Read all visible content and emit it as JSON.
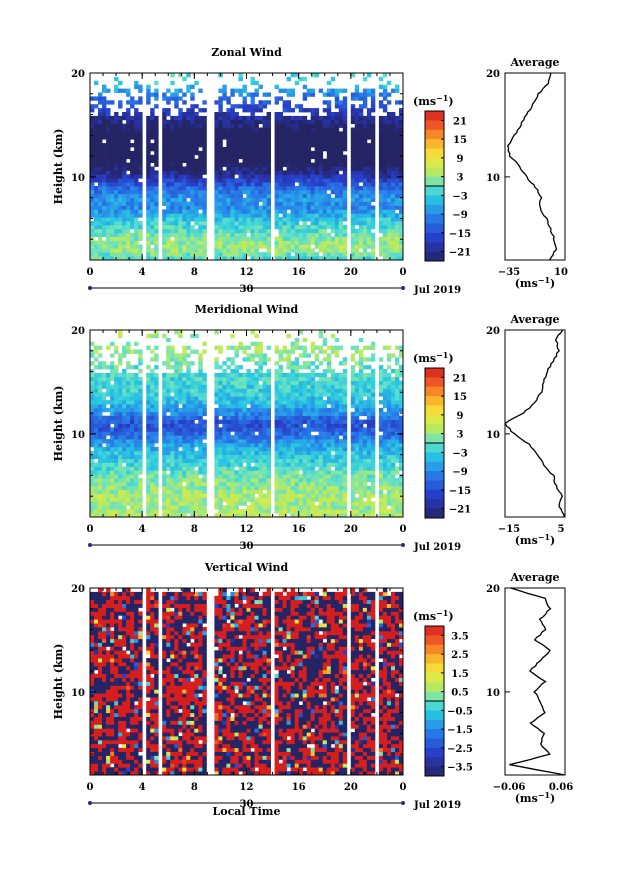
{
  "chart_data": [
    {
      "type": "heatmap",
      "title": "Zonal Wind",
      "ylabel": "Height (km)",
      "ylim": [
        2,
        20
      ],
      "y_ticks": [
        20,
        10
      ],
      "xlim": [
        0,
        24
      ],
      "x_ticks": [
        "0",
        "4",
        "8",
        "12",
        "16",
        "20",
        "0"
      ],
      "date_ticks": [
        "30"
      ],
      "date_label": "Jul 2019",
      "colorbar": {
        "unit": "(ms",
        "unit_exp": "−1",
        "unit_end": ")",
        "ticks": [
          21,
          15,
          9,
          3,
          -3,
          -9,
          -15,
          -21
        ],
        "range": [
          -24,
          24
        ]
      },
      "gaps_hours": [
        [
          4.0,
          4.3
        ],
        [
          5.2,
          5.6
        ],
        [
          9.0,
          9.4
        ],
        [
          13.7,
          14.0
        ],
        [
          19.6,
          19.9
        ],
        [
          21.8,
          22.1
        ]
      ],
      "profile": [
        [
          -2,
          2
        ],
        [
          3,
          3
        ],
        [
          2,
          4
        ],
        [
          -1,
          5
        ],
        [
          -4,
          6
        ],
        [
          -9,
          7
        ],
        [
          -8,
          8
        ],
        [
          -12,
          9
        ],
        [
          -19,
          10
        ],
        [
          -24,
          11
        ],
        [
          -31,
          12
        ],
        [
          -33,
          13
        ],
        [
          -28,
          14
        ],
        [
          -23,
          15
        ],
        [
          -19,
          16
        ],
        [
          -14,
          17
        ],
        [
          -10,
          18
        ],
        [
          -3,
          19
        ],
        [
          -1,
          20
        ]
      ],
      "average": {
        "title": "Average",
        "xlabel": "(ms",
        "xlabel_exp": "−1",
        "xlabel_end": ")",
        "xlim": [
          -35,
          10
        ],
        "x_ticks": [
          -35,
          10
        ],
        "y_ticks": [
          20,
          10
        ]
      }
    },
    {
      "type": "heatmap",
      "title": "Meridional Wind",
      "ylabel": "Height (km)",
      "ylim": [
        2,
        20
      ],
      "y_ticks": [
        20,
        10
      ],
      "xlim": [
        0,
        24
      ],
      "x_ticks": [
        "0",
        "4",
        "8",
        "12",
        "16",
        "20",
        "0"
      ],
      "date_ticks": [
        "30"
      ],
      "date_label": "Jul 2019",
      "colorbar": {
        "unit": "(ms",
        "unit_exp": "−1",
        "unit_end": ")",
        "ticks": [
          21,
          15,
          9,
          3,
          -3,
          -9,
          -15,
          -21
        ],
        "range": [
          -24,
          24
        ]
      },
      "gaps_hours": [
        [
          4.0,
          4.3
        ],
        [
          5.2,
          5.6
        ],
        [
          9.0,
          9.4
        ],
        [
          13.7,
          14.0
        ],
        [
          19.6,
          19.9
        ],
        [
          21.8,
          22.1
        ]
      ],
      "profile": [
        [
          5,
          2
        ],
        [
          3,
          3
        ],
        [
          4,
          4
        ],
        [
          2,
          5
        ],
        [
          1,
          6
        ],
        [
          -2,
          7
        ],
        [
          -4,
          8
        ],
        [
          -7,
          9
        ],
        [
          -12,
          10
        ],
        [
          -15,
          11
        ],
        [
          -9,
          12
        ],
        [
          -5,
          13
        ],
        [
          -3,
          14
        ],
        [
          -2,
          15
        ],
        [
          -1,
          16
        ],
        [
          1,
          17
        ],
        [
          3,
          18
        ],
        [
          2,
          19
        ],
        [
          4,
          20
        ]
      ],
      "average": {
        "title": "Average",
        "xlabel": "(ms",
        "xlabel_exp": "−1",
        "xlabel_end": ")",
        "xlim": [
          -15,
          5
        ],
        "x_ticks": [
          -15,
          5
        ],
        "y_ticks": [
          20,
          10
        ]
      }
    },
    {
      "type": "heatmap",
      "title": "Vertical Wind",
      "xlabel": "Local Time",
      "ylabel": "Height (km)",
      "ylim": [
        2,
        20
      ],
      "y_ticks": [
        20,
        10
      ],
      "xlim": [
        0,
        24
      ],
      "x_ticks": [
        "0",
        "4",
        "8",
        "12",
        "16",
        "20",
        "0"
      ],
      "date_ticks": [
        "30"
      ],
      "date_label": "Jul 2019",
      "colorbar": {
        "unit": "(ms",
        "unit_exp": "−1",
        "unit_end": ")",
        "ticks": [
          3.5,
          2.5,
          1.5,
          0.5,
          -0.5,
          -1.5,
          -2.5,
          -3.5
        ],
        "range": [
          -4,
          4
        ]
      },
      "gaps_hours": [
        [
          4.0,
          4.3
        ],
        [
          5.2,
          5.6
        ],
        [
          9.0,
          9.4
        ],
        [
          13.7,
          14.0
        ],
        [
          19.6,
          19.9
        ],
        [
          21.8,
          22.1
        ]
      ],
      "profile": [
        [
          0.06,
          2
        ],
        [
          -0.05,
          3
        ],
        [
          0.03,
          4
        ],
        [
          0.01,
          5
        ],
        [
          0.02,
          6
        ],
        [
          -0.01,
          7
        ],
        [
          0.02,
          8
        ],
        [
          0.01,
          9
        ],
        [
          0.0,
          10
        ],
        [
          0.02,
          11
        ],
        [
          -0.01,
          12
        ],
        [
          0.01,
          13
        ],
        [
          0.03,
          14
        ],
        [
          0.0,
          15
        ],
        [
          0.02,
          16
        ],
        [
          0.01,
          17
        ],
        [
          0.03,
          18
        ],
        [
          0.02,
          19
        ],
        [
          -0.05,
          20
        ]
      ],
      "average": {
        "title": "Average",
        "xlabel": "(ms",
        "xlabel_exp": "−1",
        "xlabel_end": ")",
        "xlim": [
          -0.06,
          0.06
        ],
        "x_ticks": [
          "−0.06",
          "0.06"
        ],
        "y_ticks": [
          20,
          10
        ]
      }
    }
  ]
}
